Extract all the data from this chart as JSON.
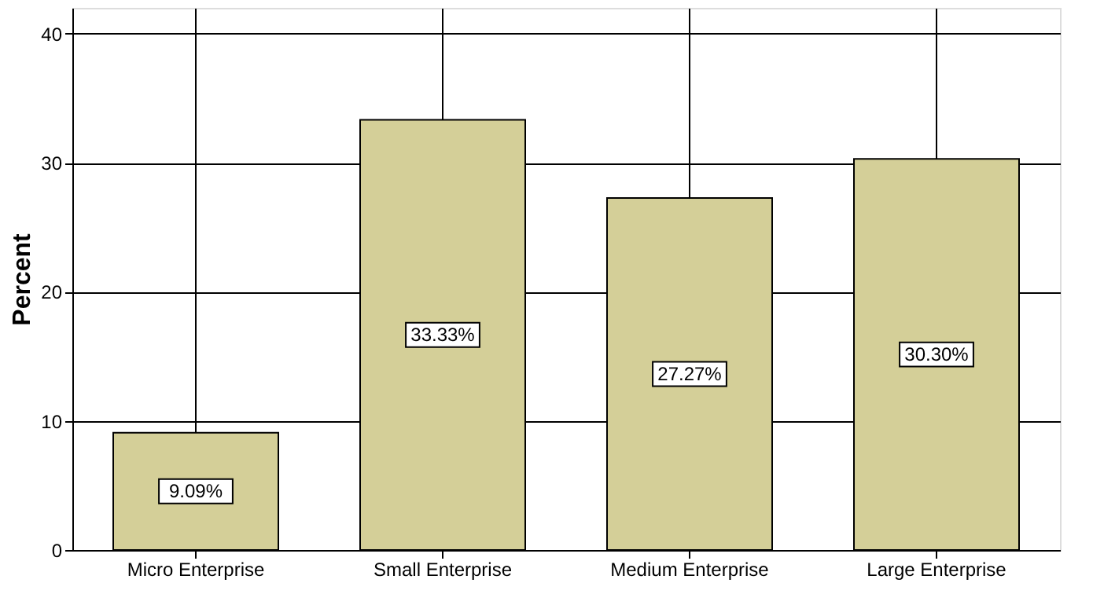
{
  "chart_data": {
    "type": "bar",
    "ylabel": "Percent",
    "categories": [
      "Micro Enterprise",
      "Small Enterprise",
      "Medium Enterprise",
      "Large Enterprise"
    ],
    "values": [
      9.09,
      33.33,
      27.27,
      30.3
    ],
    "value_labels": [
      "9.09%",
      "33.33%",
      "27.27%",
      "30.30%"
    ],
    "color": "#d4cf98",
    "ylim": [
      0,
      42
    ],
    "yticks": [
      0,
      10,
      20,
      30,
      40
    ],
    "grid": true
  }
}
